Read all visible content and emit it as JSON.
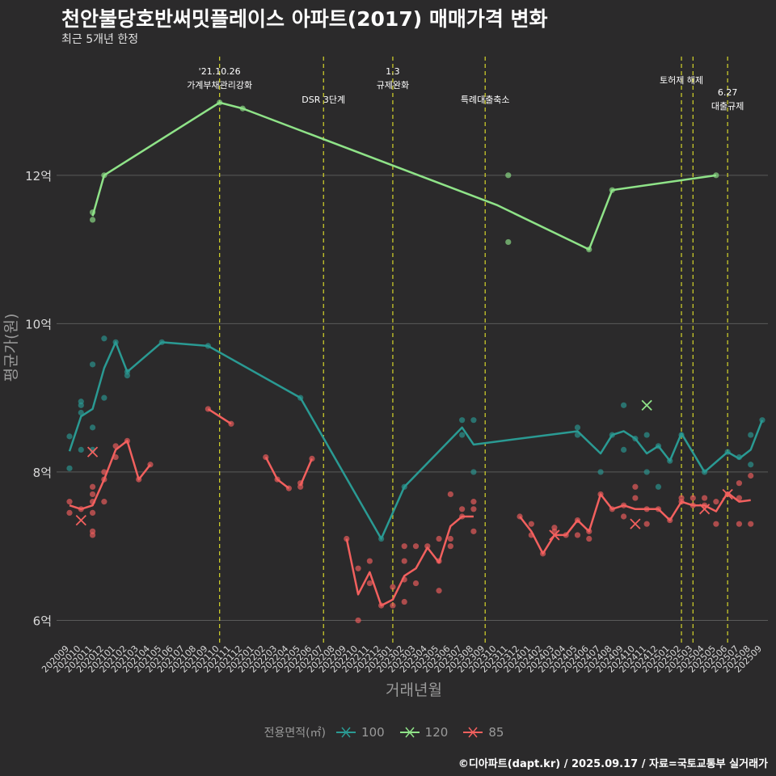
{
  "title": "천안불당호반써밋플레이스 아파트(2017) 매매가격 변화",
  "subtitle": "최근 5개년 한정",
  "caption": "©디아파트(dapt.kr) / 2025.09.17 / 자료=국토교통부 실거래가",
  "colors": {
    "background": "#2b2a2b",
    "grid": "#5a5a5a",
    "vline": "#d6d62a",
    "s100": "#2a9a93",
    "s120": "#8fe388",
    "s85": "#f2605e"
  },
  "chart_data": {
    "type": "line",
    "xlabel": "거래년월",
    "ylabel": "평균가(원)",
    "yticks": [
      {
        "v": 6,
        "label": "6억"
      },
      {
        "v": 8,
        "label": "8억"
      },
      {
        "v": 10,
        "label": "10억"
      },
      {
        "v": 12,
        "label": "12억"
      }
    ],
    "ylim": [
      5.7,
      13.6
    ],
    "categories": [
      "202009",
      "202010",
      "202011",
      "202012",
      "202101",
      "202102",
      "202103",
      "202104",
      "202105",
      "202106",
      "202107",
      "202108",
      "202109",
      "202110",
      "202111",
      "202112",
      "202201",
      "202202",
      "202203",
      "202204",
      "202205",
      "202206",
      "202207",
      "202208",
      "202209",
      "202210",
      "202211",
      "202212",
      "202301",
      "202302",
      "202303",
      "202304",
      "202305",
      "202306",
      "202307",
      "202308",
      "202309",
      "202310",
      "202311",
      "202312",
      "202401",
      "202402",
      "202403",
      "202404",
      "202405",
      "202406",
      "202407",
      "202408",
      "202409",
      "202410",
      "202411",
      "202412",
      "202501",
      "202502",
      "202503",
      "202504",
      "202505",
      "202506",
      "202507",
      "202508",
      "202509"
    ],
    "legend": {
      "title": "전용면적(㎡)",
      "items": [
        "100",
        "120",
        "85"
      ]
    },
    "events": [
      {
        "x": 13,
        "label": "'21.10.26\n가계부채관리강화",
        "row": 0
      },
      {
        "x": 22,
        "label": "DSR 3단계",
        "row": 1
      },
      {
        "x": 28,
        "label": "1.3\n규제완화",
        "row": 0
      },
      {
        "x": 36,
        "label": "특례대출축소",
        "row": 1
      },
      {
        "x": 53,
        "label": "토허제 해제",
        "row": 0
      },
      {
        "x": 54,
        "label": "",
        "row": 0
      },
      {
        "x": 57,
        "label": "6.27\n대출규제",
        "row": 2
      }
    ],
    "series": [
      {
        "name": "100",
        "color": "#2a9a93",
        "line": [
          [
            0,
            8.28
          ],
          [
            1,
            8.75
          ],
          [
            2,
            8.85
          ],
          [
            3,
            9.4
          ],
          [
            4,
            9.75
          ],
          [
            5,
            9.35
          ],
          [
            8,
            9.75
          ],
          [
            12,
            9.7
          ],
          [
            20,
            9.0
          ],
          [
            27,
            7.1
          ],
          [
            29,
            7.8
          ],
          [
            34,
            8.6
          ],
          [
            35,
            8.37
          ],
          [
            44,
            8.55
          ],
          [
            46,
            8.25
          ],
          [
            47,
            8.5
          ],
          [
            48,
            8.55
          ],
          [
            49,
            8.45
          ],
          [
            50,
            8.25
          ],
          [
            51,
            8.35
          ],
          [
            52,
            8.15
          ],
          [
            53,
            8.52
          ],
          [
            55,
            8.0
          ],
          [
            57,
            8.27
          ],
          [
            58,
            8.18
          ],
          [
            59,
            8.3
          ],
          [
            60,
            8.7
          ]
        ],
        "points": [
          [
            0,
            8.05
          ],
          [
            0,
            8.48
          ],
          [
            1,
            8.3
          ],
          [
            1,
            8.8
          ],
          [
            1,
            8.9
          ],
          [
            1,
            8.95
          ],
          [
            2,
            8.3
          ],
          [
            2,
            8.6
          ],
          [
            2,
            9.45
          ],
          [
            3,
            9.0
          ],
          [
            3,
            9.8
          ],
          [
            4,
            9.75
          ],
          [
            5,
            9.3
          ],
          [
            5,
            9.35
          ],
          [
            8,
            9.75
          ],
          [
            12,
            9.7
          ],
          [
            20,
            9.0
          ],
          [
            27,
            7.1
          ],
          [
            29,
            7.8
          ],
          [
            34,
            8.5
          ],
          [
            34,
            8.7
          ],
          [
            35,
            8.0
          ],
          [
            35,
            8.7
          ],
          [
            44,
            8.5
          ],
          [
            44,
            8.6
          ],
          [
            46,
            8.0
          ],
          [
            47,
            8.5
          ],
          [
            48,
            8.3
          ],
          [
            48,
            8.9
          ],
          [
            49,
            8.45
          ],
          [
            50,
            8.0
          ],
          [
            50,
            8.5
          ],
          [
            51,
            8.35
          ],
          [
            51,
            7.8
          ],
          [
            52,
            8.15
          ],
          [
            53,
            8.5
          ],
          [
            55,
            8.0
          ],
          [
            57,
            8.27
          ],
          [
            58,
            8.2
          ],
          [
            59,
            8.1
          ],
          [
            59,
            8.5
          ],
          [
            60,
            8.7
          ]
        ],
        "crosses": []
      },
      {
        "name": "120",
        "color": "#8fe388",
        "line": [
          [
            2,
            11.45
          ],
          [
            3,
            12.0
          ],
          [
            13,
            12.98
          ],
          [
            15,
            12.9
          ],
          [
            37,
            11.6
          ],
          [
            45,
            11.0
          ],
          [
            47,
            11.8
          ],
          [
            56,
            12.0
          ]
        ],
        "points": [
          [
            2,
            11.4
          ],
          [
            2,
            11.5
          ],
          [
            3,
            12.0
          ],
          [
            13,
            12.98
          ],
          [
            15,
            12.9
          ],
          [
            38,
            12.0
          ],
          [
            38,
            11.1
          ],
          [
            45,
            11.0
          ],
          [
            47,
            11.8
          ],
          [
            56,
            12.0
          ]
        ],
        "crosses": [
          [
            50,
            8.9
          ]
        ]
      },
      {
        "name": "85",
        "color": "#f2605e",
        "line": [
          [
            0,
            7.55
          ],
          [
            1,
            7.5
          ],
          [
            2,
            7.55
          ],
          [
            3,
            7.9
          ],
          [
            4,
            8.3
          ],
          [
            5,
            8.42
          ],
          [
            6,
            7.9
          ],
          [
            7,
            8.1
          ]
        ],
        "line2": [
          [
            12,
            8.85
          ],
          [
            14,
            8.65
          ]
        ],
        "line3": [
          [
            17,
            8.2
          ],
          [
            18,
            7.9
          ],
          [
            19,
            7.78
          ]
        ],
        "line4": [
          [
            20,
            7.82
          ],
          [
            21,
            8.18
          ]
        ],
        "line5": [
          [
            24,
            7.1
          ],
          [
            25,
            6.35
          ],
          [
            26,
            6.65
          ],
          [
            27,
            6.2
          ],
          [
            28,
            6.28
          ],
          [
            29,
            6.6
          ],
          [
            30,
            6.7
          ],
          [
            31,
            6.98
          ],
          [
            32,
            6.78
          ],
          [
            33,
            7.27
          ],
          [
            34,
            7.4
          ],
          [
            35,
            7.4
          ]
        ],
        "line6": [
          [
            39,
            7.4
          ],
          [
            40,
            7.2
          ],
          [
            41,
            6.9
          ],
          [
            42,
            7.15
          ],
          [
            43,
            7.15
          ],
          [
            44,
            7.35
          ],
          [
            45,
            7.2
          ],
          [
            46,
            7.7
          ],
          [
            47,
            7.5
          ],
          [
            48,
            7.55
          ],
          [
            49,
            7.5
          ],
          [
            50,
            7.5
          ],
          [
            51,
            7.5
          ],
          [
            52,
            7.35
          ],
          [
            53,
            7.6
          ],
          [
            54,
            7.55
          ],
          [
            55,
            7.55
          ],
          [
            56,
            7.47
          ],
          [
            57,
            7.72
          ],
          [
            58,
            7.6
          ],
          [
            59,
            7.62
          ]
        ],
        "points": [
          [
            0,
            7.6
          ],
          [
            0,
            7.45
          ],
          [
            1,
            7.5
          ],
          [
            2,
            7.8
          ],
          [
            2,
            7.7
          ],
          [
            2,
            7.6
          ],
          [
            2,
            7.45
          ],
          [
            2,
            7.2
          ],
          [
            2,
            7.15
          ],
          [
            3,
            7.6
          ],
          [
            3,
            7.9
          ],
          [
            3,
            8.0
          ],
          [
            4,
            8.2
          ],
          [
            4,
            8.35
          ],
          [
            5,
            8.42
          ],
          [
            6,
            7.9
          ],
          [
            7,
            8.1
          ],
          [
            12,
            8.85
          ],
          [
            14,
            8.65
          ],
          [
            17,
            8.2
          ],
          [
            18,
            7.9
          ],
          [
            19,
            7.78
          ],
          [
            20,
            7.85
          ],
          [
            20,
            7.8
          ],
          [
            21,
            8.18
          ],
          [
            24,
            7.1
          ],
          [
            25,
            6.7
          ],
          [
            25,
            6.0
          ],
          [
            26,
            6.5
          ],
          [
            26,
            6.8
          ],
          [
            27,
            6.2
          ],
          [
            28,
            6.2
          ],
          [
            28,
            6.45
          ],
          [
            29,
            6.25
          ],
          [
            29,
            6.55
          ],
          [
            29,
            6.8
          ],
          [
            29,
            7.0
          ],
          [
            30,
            6.5
          ],
          [
            30,
            7.0
          ],
          [
            31,
            7.0
          ],
          [
            32,
            6.4
          ],
          [
            32,
            6.8
          ],
          [
            32,
            7.1
          ],
          [
            33,
            7.0
          ],
          [
            33,
            7.1
          ],
          [
            33,
            7.7
          ],
          [
            34,
            7.4
          ],
          [
            34,
            7.5
          ],
          [
            35,
            7.2
          ],
          [
            35,
            7.5
          ],
          [
            35,
            7.6
          ],
          [
            39,
            7.4
          ],
          [
            40,
            7.3
          ],
          [
            40,
            7.15
          ],
          [
            41,
            6.9
          ],
          [
            42,
            7.25
          ],
          [
            42,
            7.2
          ],
          [
            43,
            7.15
          ],
          [
            44,
            7.35
          ],
          [
            44,
            7.15
          ],
          [
            45,
            7.1
          ],
          [
            45,
            7.2
          ],
          [
            46,
            7.7
          ],
          [
            47,
            7.5
          ],
          [
            48,
            7.55
          ],
          [
            48,
            7.4
          ],
          [
            49,
            7.65
          ],
          [
            49,
            7.8
          ],
          [
            50,
            7.3
          ],
          [
            50,
            7.5
          ],
          [
            51,
            7.5
          ],
          [
            52,
            7.35
          ],
          [
            53,
            7.6
          ],
          [
            53,
            7.65
          ],
          [
            54,
            7.55
          ],
          [
            54,
            7.65
          ],
          [
            55,
            7.55
          ],
          [
            55,
            7.65
          ],
          [
            56,
            7.3
          ],
          [
            56,
            7.6
          ],
          [
            57,
            7.7
          ],
          [
            58,
            7.85
          ],
          [
            58,
            7.65
          ],
          [
            58,
            7.3
          ],
          [
            59,
            7.3
          ],
          [
            59,
            7.95
          ]
        ],
        "crosses": [
          [
            1,
            7.35
          ],
          [
            2,
            8.27
          ],
          [
            42,
            7.15
          ],
          [
            49,
            7.3
          ],
          [
            55,
            7.5
          ],
          [
            57,
            7.7
          ]
        ]
      }
    ]
  }
}
